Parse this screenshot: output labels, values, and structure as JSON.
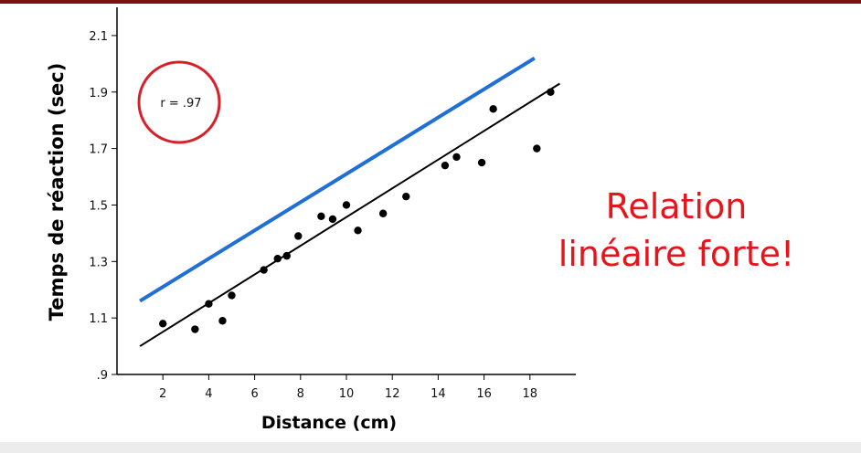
{
  "chart_data": {
    "type": "scatter",
    "xlabel": "Distance (cm)",
    "ylabel": "Temps de réaction (sec)",
    "xlim": [
      0,
      20
    ],
    "ylim": [
      0.9,
      2.2
    ],
    "x_ticks": [
      2,
      4,
      6,
      8,
      10,
      12,
      14,
      16,
      18
    ],
    "y_ticks": [
      0.9,
      1.1,
      1.3,
      1.5,
      1.7,
      1.9,
      2.1
    ],
    "y_tick_labels": [
      ".9",
      "1.1",
      "1.3",
      "1.5",
      "1.7",
      "1.9",
      "2.1"
    ],
    "series": [
      {
        "x": [
          2.0,
          3.4,
          4.0,
          4.6,
          5.0,
          6.4,
          7.0,
          7.4,
          7.9,
          8.9,
          9.4,
          10.0,
          10.5,
          11.6,
          12.6,
          14.3,
          14.8,
          15.9,
          16.4,
          18.3,
          18.9
        ],
        "y": [
          1.08,
          1.06,
          1.15,
          1.09,
          1.18,
          1.27,
          1.31,
          1.32,
          1.39,
          1.46,
          1.45,
          1.5,
          1.41,
          1.47,
          1.53,
          1.64,
          1.67,
          1.65,
          1.84,
          1.7,
          1.9
        ]
      }
    ],
    "regression_line": {
      "x": [
        1.0,
        19.3
      ],
      "y": [
        1.0,
        1.93
      ],
      "color": "#000000"
    },
    "overlay_line": {
      "x": [
        1.0,
        18.2
      ],
      "y": [
        1.16,
        2.02
      ],
      "color": "#1f6fd6"
    },
    "correlation_label": "r = .97",
    "circle_color": "#d8202a",
    "grid": false
  },
  "annotation": {
    "line1": "Relation",
    "line2": "linéaire forte!",
    "color": "#e4161b"
  }
}
